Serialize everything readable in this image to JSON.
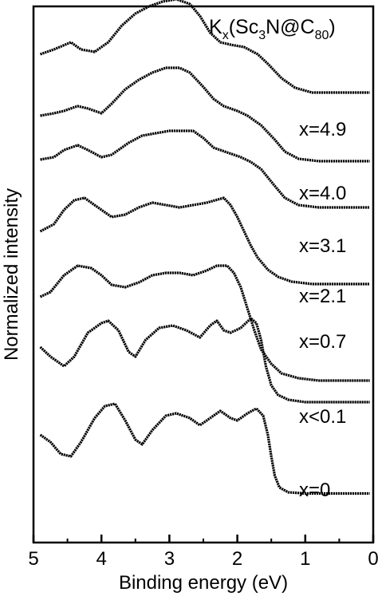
{
  "chart_data": {
    "type": "line",
    "title": "",
    "xlabel": "Binding energy (eV)",
    "ylabel": "Normalized intensity",
    "xlim": [
      5,
      0
    ],
    "x_reversed": true,
    "y_ticks_shown": false,
    "grid": false,
    "x_ticks": [
      "5",
      "4",
      "3",
      "2",
      "1",
      "0"
    ],
    "annotation": {
      "prefix": "K",
      "sub_x": "x",
      "mid": "(Sc",
      "sub_3": "3",
      "mid2": "N@C",
      "sub_80": "80",
      "suffix": ")"
    },
    "series": [
      {
        "name": "x=4.9",
        "points": [
          [
            4.9,
            0.04
          ],
          [
            4.7,
            0.06
          ],
          [
            4.45,
            0.09
          ],
          [
            4.3,
            0.06
          ],
          [
            4.1,
            0.05
          ],
          [
            3.9,
            0.09
          ],
          [
            3.7,
            0.16
          ],
          [
            3.5,
            0.21
          ],
          [
            3.3,
            0.24
          ],
          [
            3.1,
            0.26
          ],
          [
            2.9,
            0.27
          ],
          [
            2.7,
            0.25
          ],
          [
            2.55,
            0.2
          ],
          [
            2.4,
            0.13
          ],
          [
            2.25,
            0.09
          ],
          [
            2.1,
            0.08
          ],
          [
            1.9,
            0.07
          ],
          [
            1.7,
            0.04
          ],
          [
            1.55,
            0.0
          ],
          [
            1.35,
            -0.06
          ],
          [
            1.15,
            -0.1
          ],
          [
            0.9,
            -0.12
          ],
          [
            0.6,
            -0.12
          ],
          [
            0.3,
            -0.12
          ],
          [
            0.05,
            -0.12
          ]
        ]
      },
      {
        "name": "x=4.0",
        "points": [
          [
            4.9,
            0.04
          ],
          [
            4.7,
            0.05
          ],
          [
            4.55,
            0.06
          ],
          [
            4.35,
            0.08
          ],
          [
            4.2,
            0.07
          ],
          [
            4.0,
            0.05
          ],
          [
            3.85,
            0.09
          ],
          [
            3.65,
            0.15
          ],
          [
            3.45,
            0.19
          ],
          [
            3.25,
            0.22
          ],
          [
            3.05,
            0.24
          ],
          [
            2.85,
            0.24
          ],
          [
            2.7,
            0.22
          ],
          [
            2.5,
            0.16
          ],
          [
            2.35,
            0.11
          ],
          [
            2.2,
            0.08
          ],
          [
            2.0,
            0.06
          ],
          [
            1.85,
            0.04
          ],
          [
            1.65,
            0.0
          ],
          [
            1.45,
            -0.06
          ],
          [
            1.3,
            -0.11
          ],
          [
            1.1,
            -0.14
          ],
          [
            0.8,
            -0.15
          ],
          [
            0.5,
            -0.15
          ],
          [
            0.05,
            -0.15
          ]
        ]
      },
      {
        "name": "x=3.1",
        "points": [
          [
            4.9,
            0.04
          ],
          [
            4.7,
            0.05
          ],
          [
            4.55,
            0.08
          ],
          [
            4.35,
            0.1
          ],
          [
            4.2,
            0.08
          ],
          [
            4.0,
            0.05
          ],
          [
            3.85,
            0.06
          ],
          [
            3.6,
            0.11
          ],
          [
            3.4,
            0.14
          ],
          [
            3.2,
            0.15
          ],
          [
            3.0,
            0.16
          ],
          [
            2.8,
            0.16
          ],
          [
            2.65,
            0.16
          ],
          [
            2.5,
            0.13
          ],
          [
            2.35,
            0.09
          ],
          [
            2.15,
            0.07
          ],
          [
            1.95,
            0.05
          ],
          [
            1.8,
            0.03
          ],
          [
            1.65,
            0.0
          ],
          [
            1.45,
            -0.07
          ],
          [
            1.3,
            -0.12
          ],
          [
            1.1,
            -0.15
          ],
          [
            0.8,
            -0.16
          ],
          [
            0.5,
            -0.16
          ],
          [
            0.05,
            -0.16
          ]
        ]
      },
      {
        "name": "x=2.1",
        "points": [
          [
            4.9,
            0.0
          ],
          [
            4.7,
            0.03
          ],
          [
            4.55,
            0.09
          ],
          [
            4.4,
            0.13
          ],
          [
            4.25,
            0.14
          ],
          [
            4.05,
            0.1
          ],
          [
            3.85,
            0.06
          ],
          [
            3.65,
            0.07
          ],
          [
            3.45,
            0.1
          ],
          [
            3.25,
            0.12
          ],
          [
            3.05,
            0.11
          ],
          [
            2.85,
            0.1
          ],
          [
            2.65,
            0.11
          ],
          [
            2.45,
            0.12
          ],
          [
            2.2,
            0.14
          ],
          [
            2.1,
            0.11
          ],
          [
            2.0,
            0.06
          ],
          [
            1.9,
            0.0
          ],
          [
            1.8,
            -0.06
          ],
          [
            1.7,
            -0.11
          ],
          [
            1.55,
            -0.16
          ],
          [
            1.4,
            -0.19
          ],
          [
            1.2,
            -0.21
          ],
          [
            0.9,
            -0.22
          ],
          [
            0.5,
            -0.22
          ],
          [
            0.05,
            -0.22
          ]
        ]
      },
      {
        "name": "x=0.7",
        "points": [
          [
            4.9,
            0.0
          ],
          [
            4.75,
            0.02
          ],
          [
            4.55,
            0.09
          ],
          [
            4.35,
            0.13
          ],
          [
            4.15,
            0.12
          ],
          [
            4.0,
            0.09
          ],
          [
            3.85,
            0.05
          ],
          [
            3.65,
            0.04
          ],
          [
            3.45,
            0.06
          ],
          [
            3.25,
            0.09
          ],
          [
            3.05,
            0.1
          ],
          [
            2.85,
            0.1
          ],
          [
            2.65,
            0.09
          ],
          [
            2.45,
            0.11
          ],
          [
            2.3,
            0.13
          ],
          [
            2.15,
            0.13
          ],
          [
            2.05,
            0.1
          ],
          [
            1.95,
            0.04
          ],
          [
            1.85,
            -0.05
          ],
          [
            1.75,
            -0.14
          ],
          [
            1.65,
            -0.22
          ],
          [
            1.5,
            -0.28
          ],
          [
            1.35,
            -0.32
          ],
          [
            1.1,
            -0.34
          ],
          [
            0.8,
            -0.35
          ],
          [
            0.4,
            -0.35
          ],
          [
            0.05,
            -0.35
          ]
        ]
      },
      {
        "name": "x<0.1",
        "points": [
          [
            4.9,
            0.0
          ],
          [
            4.75,
            -0.04
          ],
          [
            4.55,
            -0.08
          ],
          [
            4.4,
            -0.04
          ],
          [
            4.2,
            0.06
          ],
          [
            4.0,
            0.1
          ],
          [
            3.9,
            0.11
          ],
          [
            3.75,
            0.07
          ],
          [
            3.6,
            -0.02
          ],
          [
            3.5,
            -0.04
          ],
          [
            3.35,
            0.03
          ],
          [
            3.15,
            0.08
          ],
          [
            2.95,
            0.09
          ],
          [
            2.75,
            0.07
          ],
          [
            2.55,
            0.04
          ],
          [
            2.4,
            0.09
          ],
          [
            2.3,
            0.11
          ],
          [
            2.2,
            0.07
          ],
          [
            2.1,
            0.06
          ],
          [
            1.95,
            0.08
          ],
          [
            1.8,
            0.12
          ],
          [
            1.72,
            0.1
          ],
          [
            1.65,
            0.03
          ],
          [
            1.58,
            -0.08
          ],
          [
            1.5,
            -0.16
          ],
          [
            1.4,
            -0.2
          ],
          [
            1.25,
            -0.22
          ],
          [
            1.0,
            -0.23
          ],
          [
            0.6,
            -0.23
          ],
          [
            0.05,
            -0.23
          ]
        ]
      },
      {
        "name": "x=0",
        "points": [
          [
            4.9,
            0.0
          ],
          [
            4.75,
            -0.03
          ],
          [
            4.6,
            -0.08
          ],
          [
            4.45,
            -0.09
          ],
          [
            4.3,
            -0.03
          ],
          [
            4.1,
            0.07
          ],
          [
            3.95,
            0.12
          ],
          [
            3.8,
            0.13
          ],
          [
            3.65,
            0.06
          ],
          [
            3.5,
            -0.02
          ],
          [
            3.4,
            -0.04
          ],
          [
            3.25,
            0.02
          ],
          [
            3.05,
            0.08
          ],
          [
            2.9,
            0.09
          ],
          [
            2.7,
            0.07
          ],
          [
            2.55,
            0.04
          ],
          [
            2.4,
            0.07
          ],
          [
            2.25,
            0.1
          ],
          [
            2.1,
            0.07
          ],
          [
            2.0,
            0.06
          ],
          [
            1.85,
            0.09
          ],
          [
            1.72,
            0.11
          ],
          [
            1.62,
            0.08
          ],
          [
            1.55,
            0.0
          ],
          [
            1.5,
            -0.09
          ],
          [
            1.45,
            -0.17
          ],
          [
            1.38,
            -0.22
          ],
          [
            1.25,
            -0.24
          ],
          [
            1.0,
            -0.245
          ],
          [
            0.6,
            -0.245
          ],
          [
            0.05,
            -0.245
          ]
        ]
      }
    ]
  }
}
